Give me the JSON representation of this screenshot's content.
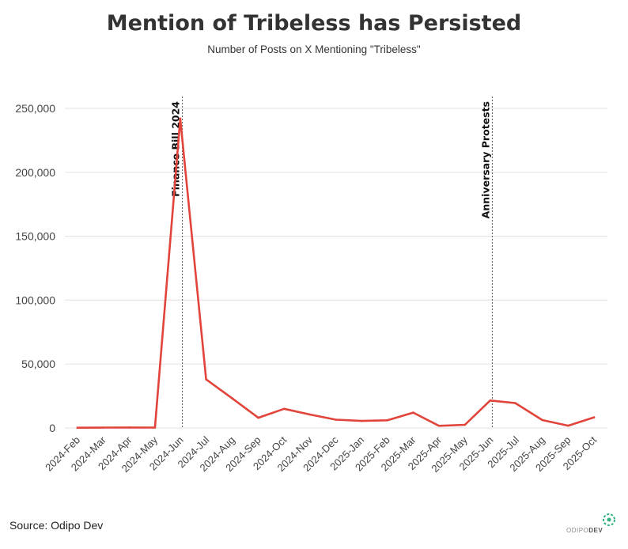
{
  "chart_data": {
    "type": "line",
    "title": "Mention of Tribeless has Persisted",
    "subtitle": "Number of Posts on X Mentioning \"Tribeless\"",
    "xlabel": "",
    "ylabel": "",
    "ylim": [
      0,
      250000
    ],
    "yticks": [
      0,
      50000,
      100000,
      150000,
      200000,
      250000
    ],
    "ytick_labels": [
      "0",
      "50,000",
      "100,000",
      "150,000",
      "200,000",
      "250,000"
    ],
    "xtick_labels": [
      "2024-Feb",
      "2024-Mar",
      "2024-Apr",
      "2024-May",
      "2024-Jun",
      "2024-Jul",
      "2024-Aug",
      "2024-Sep",
      "2024-Oct",
      "2024-Nov",
      "2024-Dec",
      "2025-Jan",
      "2025-Feb",
      "2025-Mar",
      "2025-Apr",
      "2025-May",
      "2025-Jun",
      "2025-Jul",
      "2025-Aug",
      "2025-Sep",
      "2025-Oct"
    ],
    "xtick_index": [
      0,
      1,
      2,
      3,
      4,
      5,
      6,
      7,
      8,
      9,
      10,
      11,
      12,
      13,
      14,
      15,
      16,
      17,
      18,
      19,
      20
    ],
    "series": [
      {
        "name": "Posts",
        "color": "#e0443a",
        "x": [
          0,
          1,
          2,
          3,
          3.98,
          4.98,
          6,
          7,
          8,
          9,
          10,
          11,
          12,
          13,
          14,
          15,
          15.98,
          16.95,
          18,
          19,
          20
        ],
        "values": [
          200,
          300,
          400,
          300,
          242000,
          38000,
          23000,
          8000,
          15000,
          10500,
          6500,
          5500,
          6000,
          12000,
          1700,
          2500,
          21500,
          19500,
          6200,
          1800,
          8300
        ]
      }
    ],
    "annotations": [
      {
        "label": "Finance Bill 2024",
        "x": 4.0
      },
      {
        "label": "Anniversary Protests",
        "x": 16.0
      }
    ],
    "grid": true,
    "source": "Source: Odipo Dev",
    "logo": {
      "prefix": "ODIPO",
      "suffix": "DEV"
    }
  }
}
